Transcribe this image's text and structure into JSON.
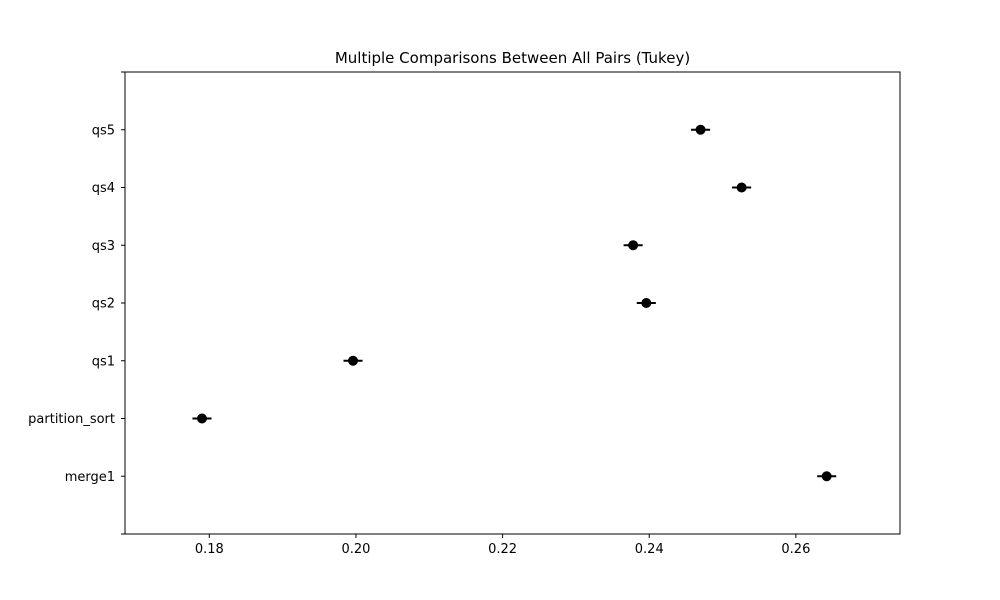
{
  "chart_data": {
    "type": "scatter",
    "title": "Multiple Comparisons Between All Pairs (Tukey)",
    "xlabel": "",
    "ylabel": "",
    "xlim": [
      0.1685,
      0.2742
    ],
    "x_ticks": [
      "0.18",
      "0.20",
      "0.22",
      "0.24",
      "0.26"
    ],
    "x_tick_values": [
      0.18,
      0.2,
      0.22,
      0.24,
      0.26
    ],
    "grid": false,
    "groups": [
      {
        "name": "merge1",
        "mean": 0.2642,
        "ci_low": 0.2629,
        "ci_high": 0.2655
      },
      {
        "name": "partition_sort",
        "mean": 0.179,
        "ci_low": 0.1777,
        "ci_high": 0.1803
      },
      {
        "name": "qs1",
        "mean": 0.1996,
        "ci_low": 0.1983,
        "ci_high": 0.2009
      },
      {
        "name": "qs2",
        "mean": 0.2396,
        "ci_low": 0.2383,
        "ci_high": 0.2409
      },
      {
        "name": "qs3",
        "mean": 0.2378,
        "ci_low": 0.2365,
        "ci_high": 0.2391
      },
      {
        "name": "qs4",
        "mean": 0.2526,
        "ci_low": 0.2513,
        "ci_high": 0.2539
      },
      {
        "name": "qs5",
        "mean": 0.247,
        "ci_low": 0.2457,
        "ci_high": 0.2483
      }
    ],
    "colors": {
      "marker": "#000000",
      "axes": "#000000"
    }
  }
}
